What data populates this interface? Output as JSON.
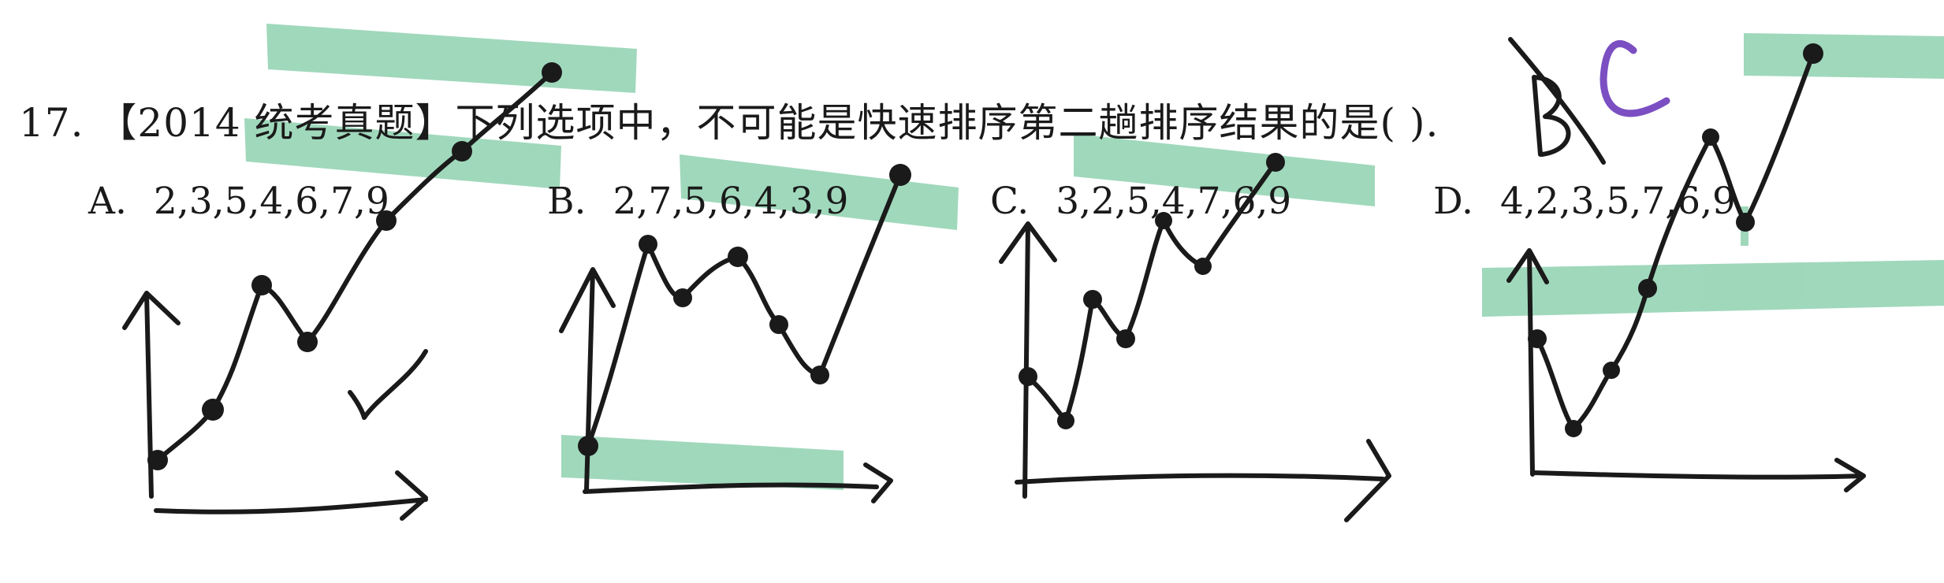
{
  "question": {
    "text": "17. 【2014 统考真题】下列选项中，不可能是快速排序第二趟排序结果的是(    )."
  },
  "options": [
    {
      "label": "A.",
      "value": "2,3,5,4,6,7,9"
    },
    {
      "label": "B.",
      "value": "2,7,5,6,4,3,9"
    },
    {
      "label": "C.",
      "value": "3,2,5,4,7,6,9"
    },
    {
      "label": "D.",
      "value": "4,2,3,5,7,6,9"
    }
  ],
  "annotations": {
    "answer_crossed_out": "B",
    "answer_written": "C",
    "option_a_mark": "check-mark"
  },
  "colors": {
    "ink": "#1a1a1a",
    "highlight": "#8fd1b0",
    "answer_purple": "#7b4fc2"
  }
}
